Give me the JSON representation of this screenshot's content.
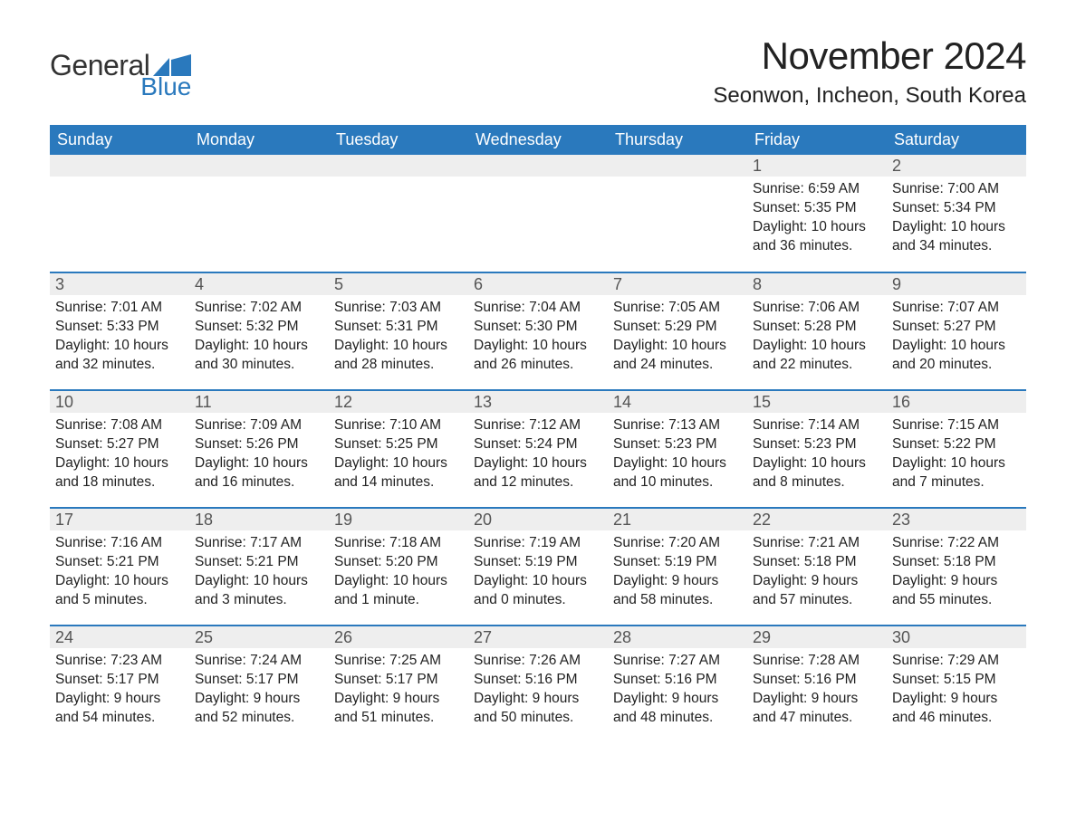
{
  "logo": {
    "word1": "General",
    "word2": "Blue",
    "word1_color": "#333333",
    "word2_color": "#2a79bd",
    "flag_color": "#2a79bd"
  },
  "title": "November 2024",
  "location": "Seonwon, Incheon, South Korea",
  "colors": {
    "header_bg": "#2a79bd",
    "header_text": "#ffffff",
    "daynum_bg": "#eeeeee",
    "daynum_text": "#555555",
    "body_text": "#222222",
    "row_divider": "#2a79bd",
    "page_bg": "#ffffff"
  },
  "fonts": {
    "title_size_pt": 32,
    "location_size_pt": 18,
    "header_size_pt": 14,
    "daynum_size_pt": 14,
    "body_size_pt": 12
  },
  "weekdays": [
    "Sunday",
    "Monday",
    "Tuesday",
    "Wednesday",
    "Thursday",
    "Friday",
    "Saturday"
  ],
  "weeks": [
    [
      {
        "empty": true
      },
      {
        "empty": true
      },
      {
        "empty": true
      },
      {
        "empty": true
      },
      {
        "empty": true
      },
      {
        "day": "1",
        "sunrise": "Sunrise: 6:59 AM",
        "sunset": "Sunset: 5:35 PM",
        "daylight1": "Daylight: 10 hours",
        "daylight2": "and 36 minutes."
      },
      {
        "day": "2",
        "sunrise": "Sunrise: 7:00 AM",
        "sunset": "Sunset: 5:34 PM",
        "daylight1": "Daylight: 10 hours",
        "daylight2": "and 34 minutes."
      }
    ],
    [
      {
        "day": "3",
        "sunrise": "Sunrise: 7:01 AM",
        "sunset": "Sunset: 5:33 PM",
        "daylight1": "Daylight: 10 hours",
        "daylight2": "and 32 minutes."
      },
      {
        "day": "4",
        "sunrise": "Sunrise: 7:02 AM",
        "sunset": "Sunset: 5:32 PM",
        "daylight1": "Daylight: 10 hours",
        "daylight2": "and 30 minutes."
      },
      {
        "day": "5",
        "sunrise": "Sunrise: 7:03 AM",
        "sunset": "Sunset: 5:31 PM",
        "daylight1": "Daylight: 10 hours",
        "daylight2": "and 28 minutes."
      },
      {
        "day": "6",
        "sunrise": "Sunrise: 7:04 AM",
        "sunset": "Sunset: 5:30 PM",
        "daylight1": "Daylight: 10 hours",
        "daylight2": "and 26 minutes."
      },
      {
        "day": "7",
        "sunrise": "Sunrise: 7:05 AM",
        "sunset": "Sunset: 5:29 PM",
        "daylight1": "Daylight: 10 hours",
        "daylight2": "and 24 minutes."
      },
      {
        "day": "8",
        "sunrise": "Sunrise: 7:06 AM",
        "sunset": "Sunset: 5:28 PM",
        "daylight1": "Daylight: 10 hours",
        "daylight2": "and 22 minutes."
      },
      {
        "day": "9",
        "sunrise": "Sunrise: 7:07 AM",
        "sunset": "Sunset: 5:27 PM",
        "daylight1": "Daylight: 10 hours",
        "daylight2": "and 20 minutes."
      }
    ],
    [
      {
        "day": "10",
        "sunrise": "Sunrise: 7:08 AM",
        "sunset": "Sunset: 5:27 PM",
        "daylight1": "Daylight: 10 hours",
        "daylight2": "and 18 minutes."
      },
      {
        "day": "11",
        "sunrise": "Sunrise: 7:09 AM",
        "sunset": "Sunset: 5:26 PM",
        "daylight1": "Daylight: 10 hours",
        "daylight2": "and 16 minutes."
      },
      {
        "day": "12",
        "sunrise": "Sunrise: 7:10 AM",
        "sunset": "Sunset: 5:25 PM",
        "daylight1": "Daylight: 10 hours",
        "daylight2": "and 14 minutes."
      },
      {
        "day": "13",
        "sunrise": "Sunrise: 7:12 AM",
        "sunset": "Sunset: 5:24 PM",
        "daylight1": "Daylight: 10 hours",
        "daylight2": "and 12 minutes."
      },
      {
        "day": "14",
        "sunrise": "Sunrise: 7:13 AM",
        "sunset": "Sunset: 5:23 PM",
        "daylight1": "Daylight: 10 hours",
        "daylight2": "and 10 minutes."
      },
      {
        "day": "15",
        "sunrise": "Sunrise: 7:14 AM",
        "sunset": "Sunset: 5:23 PM",
        "daylight1": "Daylight: 10 hours",
        "daylight2": "and 8 minutes."
      },
      {
        "day": "16",
        "sunrise": "Sunrise: 7:15 AM",
        "sunset": "Sunset: 5:22 PM",
        "daylight1": "Daylight: 10 hours",
        "daylight2": "and 7 minutes."
      }
    ],
    [
      {
        "day": "17",
        "sunrise": "Sunrise: 7:16 AM",
        "sunset": "Sunset: 5:21 PM",
        "daylight1": "Daylight: 10 hours",
        "daylight2": "and 5 minutes."
      },
      {
        "day": "18",
        "sunrise": "Sunrise: 7:17 AM",
        "sunset": "Sunset: 5:21 PM",
        "daylight1": "Daylight: 10 hours",
        "daylight2": "and 3 minutes."
      },
      {
        "day": "19",
        "sunrise": "Sunrise: 7:18 AM",
        "sunset": "Sunset: 5:20 PM",
        "daylight1": "Daylight: 10 hours",
        "daylight2": "and 1 minute."
      },
      {
        "day": "20",
        "sunrise": "Sunrise: 7:19 AM",
        "sunset": "Sunset: 5:19 PM",
        "daylight1": "Daylight: 10 hours",
        "daylight2": "and 0 minutes."
      },
      {
        "day": "21",
        "sunrise": "Sunrise: 7:20 AM",
        "sunset": "Sunset: 5:19 PM",
        "daylight1": "Daylight: 9 hours",
        "daylight2": "and 58 minutes."
      },
      {
        "day": "22",
        "sunrise": "Sunrise: 7:21 AM",
        "sunset": "Sunset: 5:18 PM",
        "daylight1": "Daylight: 9 hours",
        "daylight2": "and 57 minutes."
      },
      {
        "day": "23",
        "sunrise": "Sunrise: 7:22 AM",
        "sunset": "Sunset: 5:18 PM",
        "daylight1": "Daylight: 9 hours",
        "daylight2": "and 55 minutes."
      }
    ],
    [
      {
        "day": "24",
        "sunrise": "Sunrise: 7:23 AM",
        "sunset": "Sunset: 5:17 PM",
        "daylight1": "Daylight: 9 hours",
        "daylight2": "and 54 minutes."
      },
      {
        "day": "25",
        "sunrise": "Sunrise: 7:24 AM",
        "sunset": "Sunset: 5:17 PM",
        "daylight1": "Daylight: 9 hours",
        "daylight2": "and 52 minutes."
      },
      {
        "day": "26",
        "sunrise": "Sunrise: 7:25 AM",
        "sunset": "Sunset: 5:17 PM",
        "daylight1": "Daylight: 9 hours",
        "daylight2": "and 51 minutes."
      },
      {
        "day": "27",
        "sunrise": "Sunrise: 7:26 AM",
        "sunset": "Sunset: 5:16 PM",
        "daylight1": "Daylight: 9 hours",
        "daylight2": "and 50 minutes."
      },
      {
        "day": "28",
        "sunrise": "Sunrise: 7:27 AM",
        "sunset": "Sunset: 5:16 PM",
        "daylight1": "Daylight: 9 hours",
        "daylight2": "and 48 minutes."
      },
      {
        "day": "29",
        "sunrise": "Sunrise: 7:28 AM",
        "sunset": "Sunset: 5:16 PM",
        "daylight1": "Daylight: 9 hours",
        "daylight2": "and 47 minutes."
      },
      {
        "day": "30",
        "sunrise": "Sunrise: 7:29 AM",
        "sunset": "Sunset: 5:15 PM",
        "daylight1": "Daylight: 9 hours",
        "daylight2": "and 46 minutes."
      }
    ]
  ]
}
